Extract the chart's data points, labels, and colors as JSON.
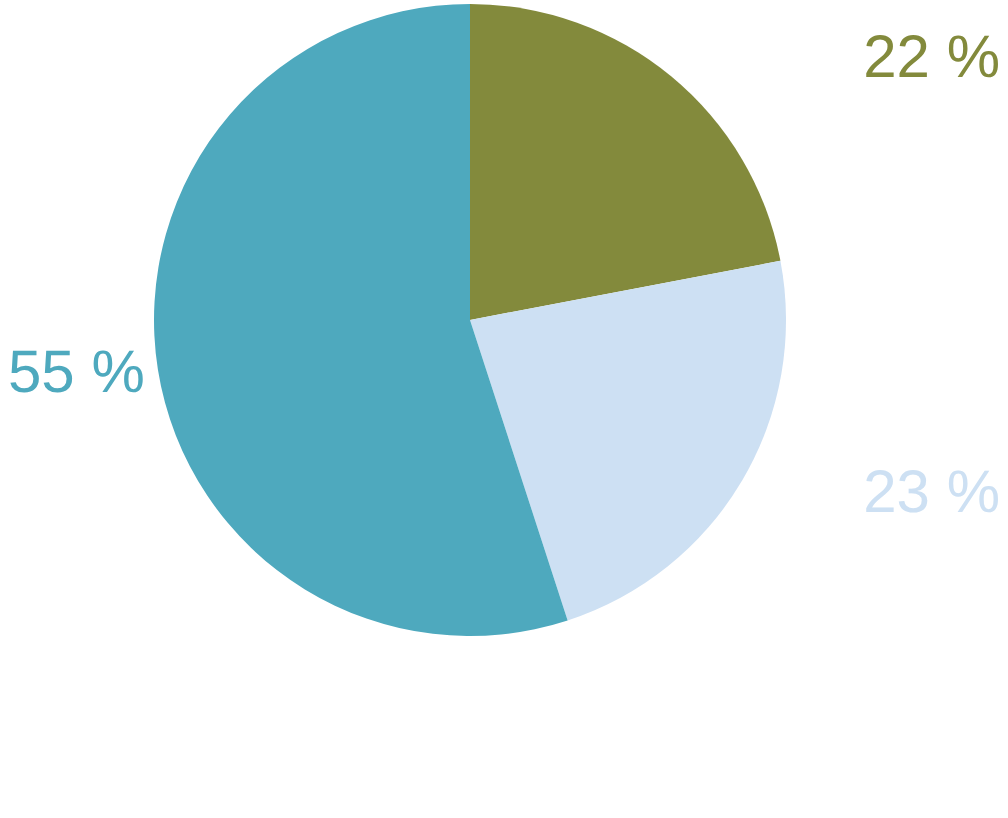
{
  "chart_data": {
    "type": "pie",
    "categories": [
      null,
      null,
      null
    ],
    "values": [
      22,
      23,
      55
    ],
    "colors": [
      "#838a3c",
      "#cde0f3",
      "#4ea9be"
    ],
    "value_labels": [
      "22 %",
      "23 %",
      "55 %"
    ]
  }
}
